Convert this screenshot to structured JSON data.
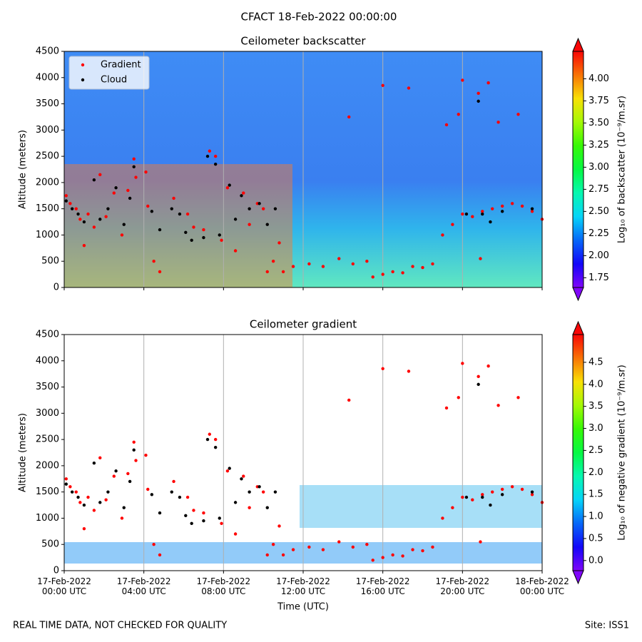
{
  "title": "CFACT 18-Feb-2022 00:00:00",
  "footer_left": "REAL TIME DATA, NOT CHECKED FOR QUALITY",
  "footer_right": "Site: ISS1",
  "chart_data": [
    {
      "type": "scatter",
      "title": "Ceilometer backscatter",
      "y_label": "Altitude (meters)",
      "xlim": [
        0,
        24
      ],
      "xticks": [
        0,
        4,
        8,
        12,
        16,
        20,
        24
      ],
      "show_xticklabels": false,
      "ylim": [
        0,
        4500
      ],
      "yticks": [
        0,
        500,
        1000,
        1500,
        2000,
        2500,
        3000,
        3500,
        4000,
        4500
      ],
      "grid": "x",
      "legend": "upper left",
      "colormap": "rainbow",
      "colorbar_label": "Log₁₀ of backscatter (10⁻⁹/m.sr)",
      "clim": [
        1.64,
        4.31
      ],
      "cticks": [
        1.75,
        {
          "value": 2,
          "label": "2.00"
        },
        2.25,
        {
          "value": 2.5,
          "label": "2.50"
        },
        2.75,
        {
          "value": 3,
          "label": "3.00"
        },
        3.25,
        {
          "value": 3.5,
          "label": "3.50"
        },
        3.75,
        {
          "value": 4,
          "label": "4.00"
        }
      ],
      "series": [
        {
          "name": "Gradient",
          "color": "#ff0000",
          "x": [
            0.1,
            0.3,
            0.6,
            0.8,
            1.0,
            1.2,
            1.5,
            1.8,
            2.1,
            2.5,
            2.9,
            3.2,
            3.5,
            3.6,
            4.1,
            4.2,
            4.5,
            4.8,
            5.5,
            6.2,
            6.5,
            7.0,
            7.3,
            7.6,
            7.9,
            8.2,
            8.6,
            9.0,
            9.3,
            9.7,
            10.0,
            10.2,
            10.5,
            10.8,
            11.0,
            11.5,
            12.3,
            13.0,
            13.8,
            14.5,
            15.2,
            15.5,
            16.0,
            16.5,
            17.0,
            17.5,
            18.0,
            18.5,
            19.0,
            19.5,
            20.0,
            20.5,
            21.0,
            21.5,
            22.0,
            22.5,
            23.0,
            23.5,
            24.0,
            20.8,
            20.0,
            19.8,
            16.0,
            14.3,
            17.3,
            21.3,
            22.8,
            21.8,
            19.2,
            20.9
          ],
          "values": [
            1750,
            1600,
            1500,
            1300,
            800,
            1400,
            1150,
            2150,
            1350,
            1800,
            1000,
            1850,
            2450,
            2100,
            2200,
            1550,
            500,
            300,
            1700,
            1400,
            1150,
            1100,
            2600,
            2500,
            900,
            1900,
            700,
            1800,
            1200,
            1600,
            1500,
            300,
            500,
            850,
            300,
            400,
            450,
            400,
            550,
            450,
            500,
            200,
            250,
            300,
            280,
            400,
            380,
            450,
            1000,
            1200,
            1400,
            1350,
            1450,
            1500,
            1550,
            1600,
            1550,
            1450,
            1300,
            3700,
            3950,
            3300,
            3850,
            3250,
            3800,
            3900,
            3300,
            3150,
            3100,
            550
          ]
        },
        {
          "name": "Cloud",
          "color": "#000000",
          "x": [
            0.1,
            0.4,
            0.7,
            1.0,
            1.5,
            1.8,
            2.2,
            2.6,
            3.0,
            3.3,
            3.5,
            4.4,
            4.8,
            5.4,
            5.8,
            6.1,
            6.4,
            7.0,
            7.2,
            7.6,
            7.8,
            8.3,
            8.6,
            8.9,
            9.3,
            9.8,
            10.2,
            10.6,
            20.8,
            21.0,
            21.4,
            23.5,
            20.2,
            22.0
          ],
          "values": [
            1650,
            1500,
            1400,
            1250,
            2050,
            1300,
            1500,
            1900,
            1200,
            1700,
            2300,
            1450,
            1100,
            1500,
            1400,
            1050,
            900,
            950,
            2500,
            2350,
            1000,
            1950,
            1300,
            1750,
            1500,
            1600,
            1200,
            1500,
            3550,
            1400,
            1250,
            1500,
            1400,
            1450
          ]
        }
      ]
    },
    {
      "type": "scatter",
      "title": "Ceilometer gradient",
      "y_label": "Altitude (meters)",
      "x_label": "Time (UTC)",
      "xlim": [
        0,
        24
      ],
      "xticks": [
        {
          "value": 0,
          "label": "17-Feb-2022\n00:00 UTC"
        },
        {
          "value": 4,
          "label": "17-Feb-2022\n04:00 UTC"
        },
        {
          "value": 8,
          "label": "17-Feb-2022\n08:00 UTC"
        },
        {
          "value": 12,
          "label": "17-Feb-2022\n12:00 UTC"
        },
        {
          "value": 16,
          "label": "17-Feb-2022\n16:00 UTC"
        },
        {
          "value": 20,
          "label": "17-Feb-2022\n20:00 UTC"
        },
        {
          "value": 24,
          "label": "18-Feb-2022\n00:00 UTC"
        }
      ],
      "show_xticklabels": true,
      "ylim": [
        0,
        4500
      ],
      "yticks": [
        0,
        500,
        1000,
        1500,
        2000,
        2500,
        3000,
        3500,
        4000,
        4500
      ],
      "grid": "x",
      "colormap": "rainbow",
      "colorbar_label": "Log₁₀ of negative gradient (10⁻⁹/m.sr)",
      "clim": [
        -0.23,
        5.13
      ],
      "cticks": [
        {
          "value": 0,
          "label": "0.0"
        },
        0.5,
        {
          "value": 1,
          "label": "1.0"
        },
        1.5,
        {
          "value": 2,
          "label": "2.0"
        },
        2.5,
        {
          "value": 3,
          "label": "3.0"
        },
        3.5,
        {
          "value": 4,
          "label": "4.0"
        },
        4.5
      ],
      "series": [
        {
          "name": "Gradient",
          "color": "#ff0000",
          "x": [
            0.1,
            0.3,
            0.6,
            0.8,
            1.0,
            1.2,
            1.5,
            1.8,
            2.1,
            2.5,
            2.9,
            3.2,
            3.5,
            3.6,
            4.1,
            4.2,
            4.5,
            4.8,
            5.5,
            6.2,
            6.5,
            7.0,
            7.3,
            7.6,
            7.9,
            8.2,
            8.6,
            9.0,
            9.3,
            9.7,
            10.0,
            10.2,
            10.5,
            10.8,
            11.0,
            11.5,
            12.3,
            13.0,
            13.8,
            14.5,
            15.2,
            15.5,
            16.0,
            16.5,
            17.0,
            17.5,
            18.0,
            18.5,
            19.0,
            19.5,
            20.0,
            20.5,
            21.0,
            21.5,
            22.0,
            22.5,
            23.0,
            23.5,
            24.0,
            20.8,
            20.0,
            19.8,
            16.0,
            14.3,
            17.3,
            21.3,
            22.8,
            21.8,
            19.2,
            20.9
          ],
          "values": [
            1750,
            1600,
            1500,
            1300,
            800,
            1400,
            1150,
            2150,
            1350,
            1800,
            1000,
            1850,
            2450,
            2100,
            2200,
            1550,
            500,
            300,
            1700,
            1400,
            1150,
            1100,
            2600,
            2500,
            900,
            1900,
            700,
            1800,
            1200,
            1600,
            1500,
            300,
            500,
            850,
            300,
            400,
            450,
            400,
            550,
            450,
            500,
            200,
            250,
            300,
            280,
            400,
            380,
            450,
            1000,
            1200,
            1400,
            1350,
            1450,
            1500,
            1550,
            1600,
            1550,
            1450,
            1300,
            3700,
            3950,
            3300,
            3850,
            3250,
            3800,
            3900,
            3300,
            3150,
            3100,
            550
          ]
        },
        {
          "name": "Cloud",
          "color": "#000000",
          "x": [
            0.1,
            0.4,
            0.7,
            1.0,
            1.5,
            1.8,
            2.2,
            2.6,
            3.0,
            3.3,
            3.5,
            4.4,
            4.8,
            5.4,
            5.8,
            6.1,
            6.4,
            7.0,
            7.2,
            7.6,
            7.8,
            8.3,
            8.6,
            8.9,
            9.3,
            9.8,
            10.2,
            10.6,
            20.8,
            21.0,
            21.4,
            23.5,
            20.2,
            22.0
          ],
          "values": [
            1650,
            1500,
            1400,
            1250,
            2050,
            1300,
            1500,
            1900,
            1200,
            1700,
            2300,
            1450,
            1100,
            1500,
            1400,
            1050,
            900,
            950,
            2500,
            2350,
            1000,
            1950,
            1300,
            1750,
            1500,
            1600,
            1200,
            1500,
            3550,
            1400,
            1250,
            1500,
            1400,
            1450
          ]
        }
      ]
    }
  ]
}
